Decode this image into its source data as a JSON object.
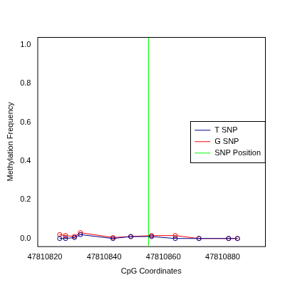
{
  "chart_data": {
    "type": "line",
    "x_label": "CpG Coordinates",
    "y_label": "Methylation Frequency",
    "x": [
      47810825,
      47810827,
      47810830,
      47810832,
      47810843,
      47810849,
      47810856,
      47810864,
      47810872,
      47810882,
      47810885
    ],
    "series": [
      {
        "name": "T SNP",
        "color": "#00008b",
        "marker": "circle_open",
        "line_style": "solid",
        "values": [
          0.0,
          0.0,
          0.005,
          0.02,
          0.0,
          0.01,
          0.01,
          0.0,
          0.0,
          0.0,
          0.0
        ]
      },
      {
        "name": "G SNP",
        "color": "#ff0000",
        "marker": "circle_open",
        "line_style": "solid",
        "values": [
          0.02,
          0.015,
          0.01,
          0.03,
          0.005,
          0.01,
          0.015,
          0.015,
          0.0,
          0.0,
          0.0
        ]
      }
    ],
    "vlines": [
      {
        "name": "SNP Position",
        "x": 47810855,
        "color": "#00ff00"
      }
    ],
    "xlim": [
      47810817.5,
      47810894.3
    ],
    "xticks": [
      47810820,
      47810840,
      47810860,
      47810880
    ],
    "ylim": [
      -0.04,
      1.04
    ],
    "yticks": [
      {
        "value": 0,
        "label": "0.0"
      },
      0.2,
      0.4,
      0.6,
      0.8,
      {
        "value": 1,
        "label": "1.0"
      }
    ],
    "grid": false,
    "legend": "right"
  }
}
